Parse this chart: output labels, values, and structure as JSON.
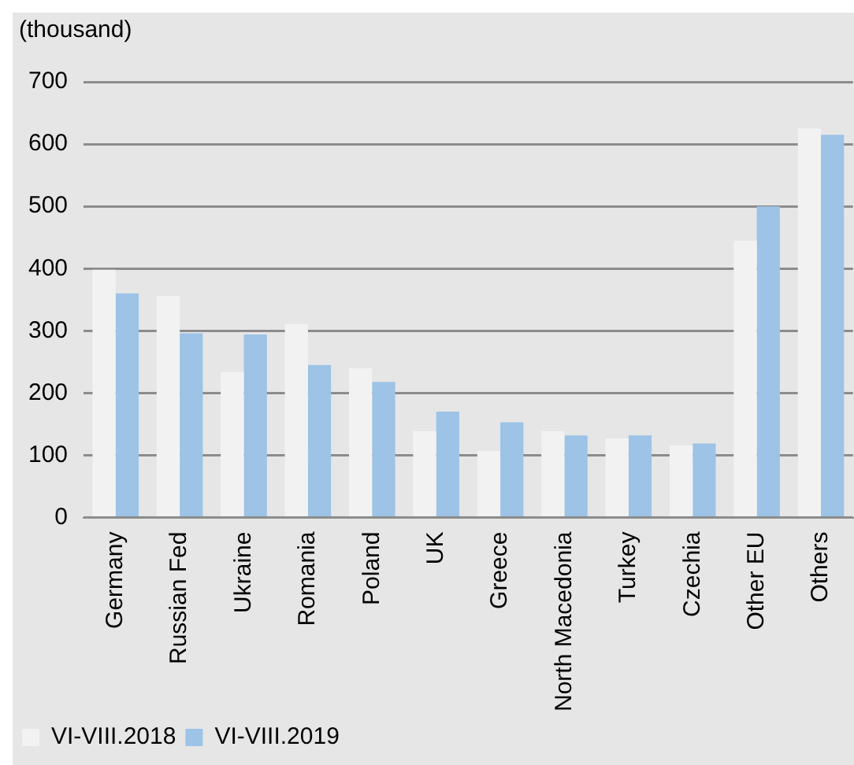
{
  "chart_data": {
    "type": "bar",
    "ylabel": "(thousand)",
    "categories": [
      "Germany",
      "Russian Fed",
      "Ukraine",
      "Romania",
      "Poland",
      "UK",
      "Greece",
      "North Macedonia",
      "Turkey",
      "Czechia",
      "Other EU",
      "Others"
    ],
    "series": [
      {
        "name": "VI-VIII.2018",
        "color": "#f2f2f2",
        "values": [
          398,
          356,
          234,
          311,
          240,
          139,
          107,
          139,
          127,
          116,
          445,
          625
        ]
      },
      {
        "name": "VI-VIII.2019",
        "color": "#9dc3e6",
        "values": [
          360,
          296,
          294,
          245,
          218,
          170,
          153,
          132,
          132,
          119,
          500,
          615
        ]
      }
    ],
    "ylim": [
      0,
      700
    ],
    "yticks": [
      0,
      100,
      200,
      300,
      400,
      500,
      600,
      700
    ],
    "grid": "y",
    "legend": "bottom left"
  }
}
